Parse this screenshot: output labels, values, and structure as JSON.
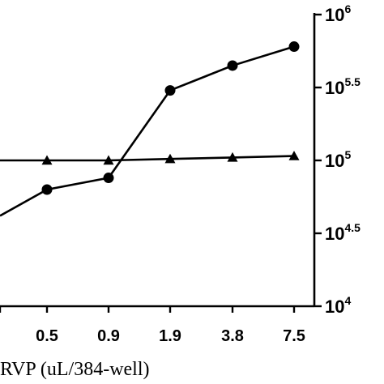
{
  "chart_data": {
    "type": "line",
    "xlabel": "RVP (uL/384-well)",
    "categories": [
      "",
      "0.5",
      "0.9",
      "1.9",
      "3.8",
      "7.5"
    ],
    "y_axis": {
      "position": "right",
      "scale": "log10",
      "ylim": [
        10000,
        1000000
      ],
      "ticks": [
        {
          "base": "10",
          "exp": "4",
          "value": 10000
        },
        {
          "base": "10",
          "exp": "4.5",
          "value": 31623
        },
        {
          "base": "10",
          "exp": "5",
          "value": 100000
        },
        {
          "base": "10",
          "exp": "5.5",
          "value": 316228
        },
        {
          "base": "10",
          "exp": "6",
          "value": 1000000
        }
      ]
    },
    "series": [
      {
        "marker": "circle",
        "values": [
          41700,
          63100,
          75900,
          302000,
          447000,
          603000
        ]
      },
      {
        "marker": "triangle",
        "values": [
          100000,
          100000,
          100000,
          102300,
          104700,
          107200
        ]
      }
    ],
    "grid": false,
    "legend": "none"
  }
}
